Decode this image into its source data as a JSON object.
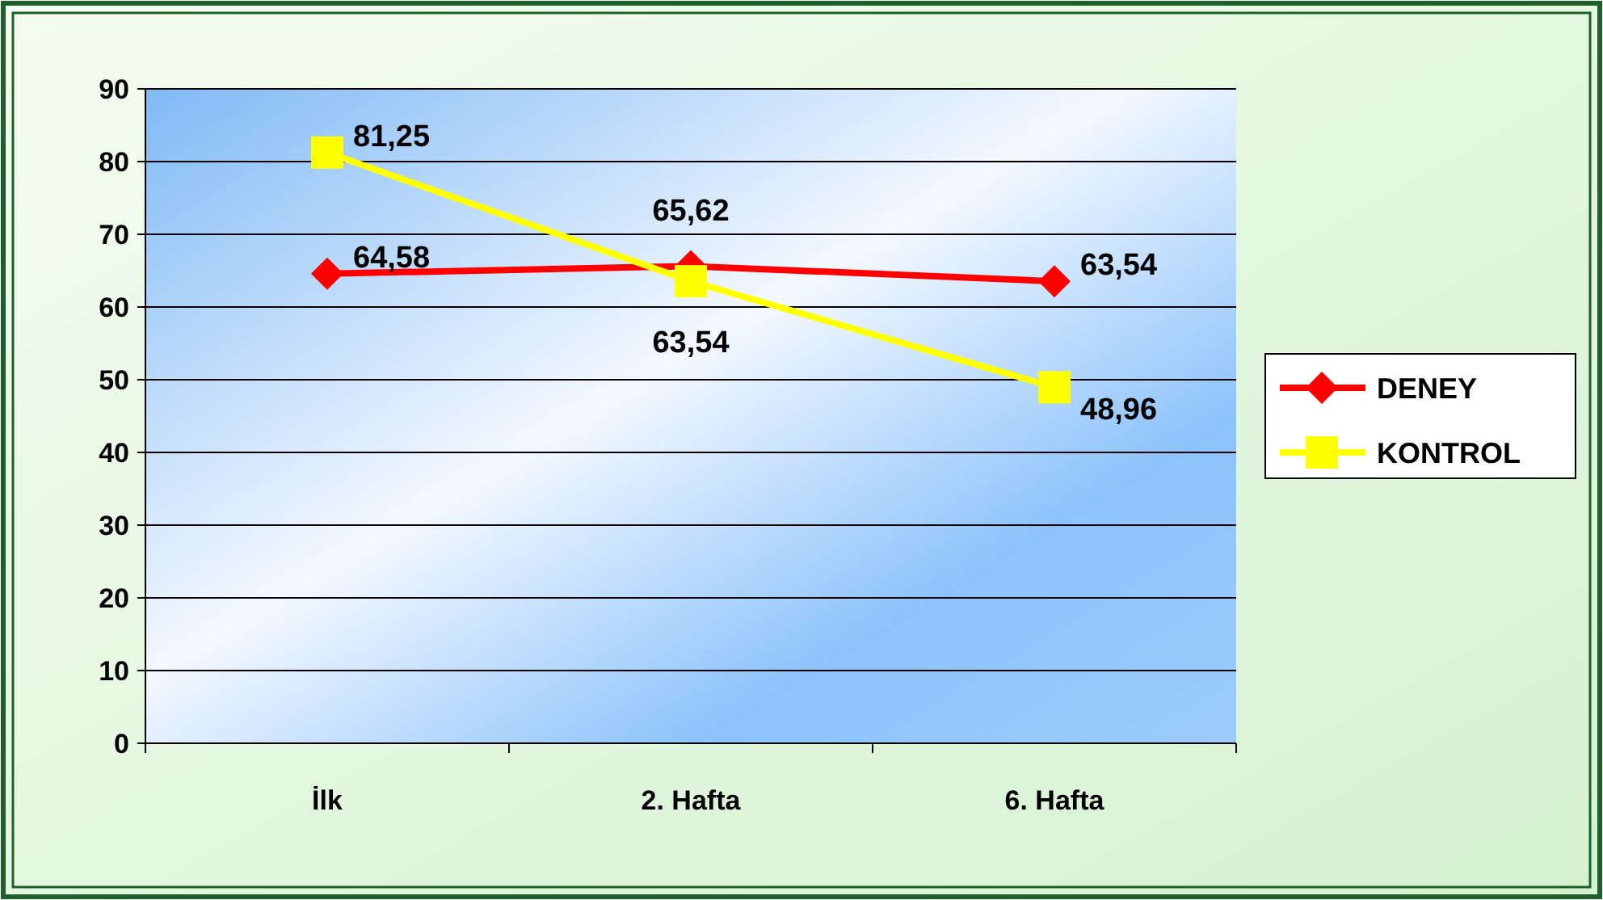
{
  "chart_data": {
    "type": "line",
    "categories": [
      "İlk",
      "2. Hafta",
      "6. Hafta"
    ],
    "series": [
      {
        "name": "DENEY",
        "color": "#ff0000",
        "marker": "diamond",
        "values": [
          64.58,
          65.62,
          63.54
        ],
        "value_labels": [
          "64,58",
          "65,62",
          "63,54"
        ]
      },
      {
        "name": "KONTROL",
        "color": "#ffff00",
        "marker": "square",
        "values": [
          81.25,
          63.54,
          48.96
        ],
        "value_labels": [
          "81,25",
          "63,54",
          "48,96"
        ]
      }
    ],
    "ylim": [
      0,
      90
    ],
    "yticks": [
      0,
      10,
      20,
      30,
      40,
      50,
      60,
      70,
      80,
      90
    ],
    "grid": "y",
    "legend": "right",
    "line_style": "solid"
  }
}
